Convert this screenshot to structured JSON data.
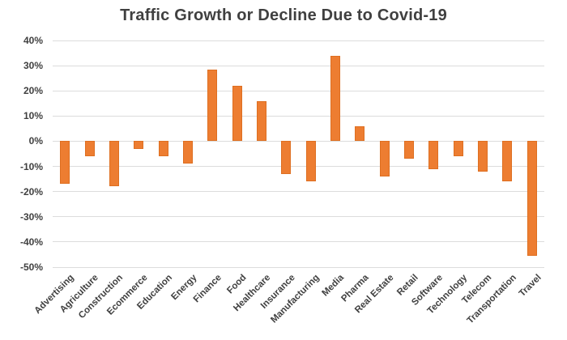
{
  "title": "Traffic Growth or Decline Due to Covid-19",
  "colors": {
    "bar": "#ED7D31",
    "bar_edge": "#D2661A",
    "gridline": "#DCDCDC",
    "title_text": "#404040",
    "axis_text": "#404040",
    "background": "#FFFFFF"
  },
  "chart_data": {
    "type": "bar",
    "title": "Traffic Growth or Decline Due to Covid-19",
    "categories": [
      "Advertising",
      "Agriculture",
      "Construction",
      "Ecommerce",
      "Education",
      "Energy",
      "Finance",
      "Food",
      "Healthcare",
      "Insurance",
      "Manufacturing",
      "Media",
      "Pharma",
      "Real Estate",
      "Retail",
      "Software",
      "Technology",
      "Telecom",
      "Transportation",
      "Travel"
    ],
    "values": [
      -17,
      -6,
      -18,
      -3,
      -6,
      -9,
      28.5,
      22,
      16,
      -13,
      -16,
      34,
      6,
      -14,
      -7,
      -11,
      -6,
      -12,
      -16,
      -45.5
    ],
    "value_unit": "percent",
    "xlabel": "",
    "ylabel": "",
    "ylim": [
      -50,
      40
    ],
    "ytick_step": 10,
    "yticks": [
      "40%",
      "30%",
      "20%",
      "10%",
      "0%",
      "-10%",
      "-20%",
      "-30%",
      "-40%",
      "-50%"
    ],
    "grid": true,
    "legend": false,
    "x_label_rotation_deg": 45
  }
}
